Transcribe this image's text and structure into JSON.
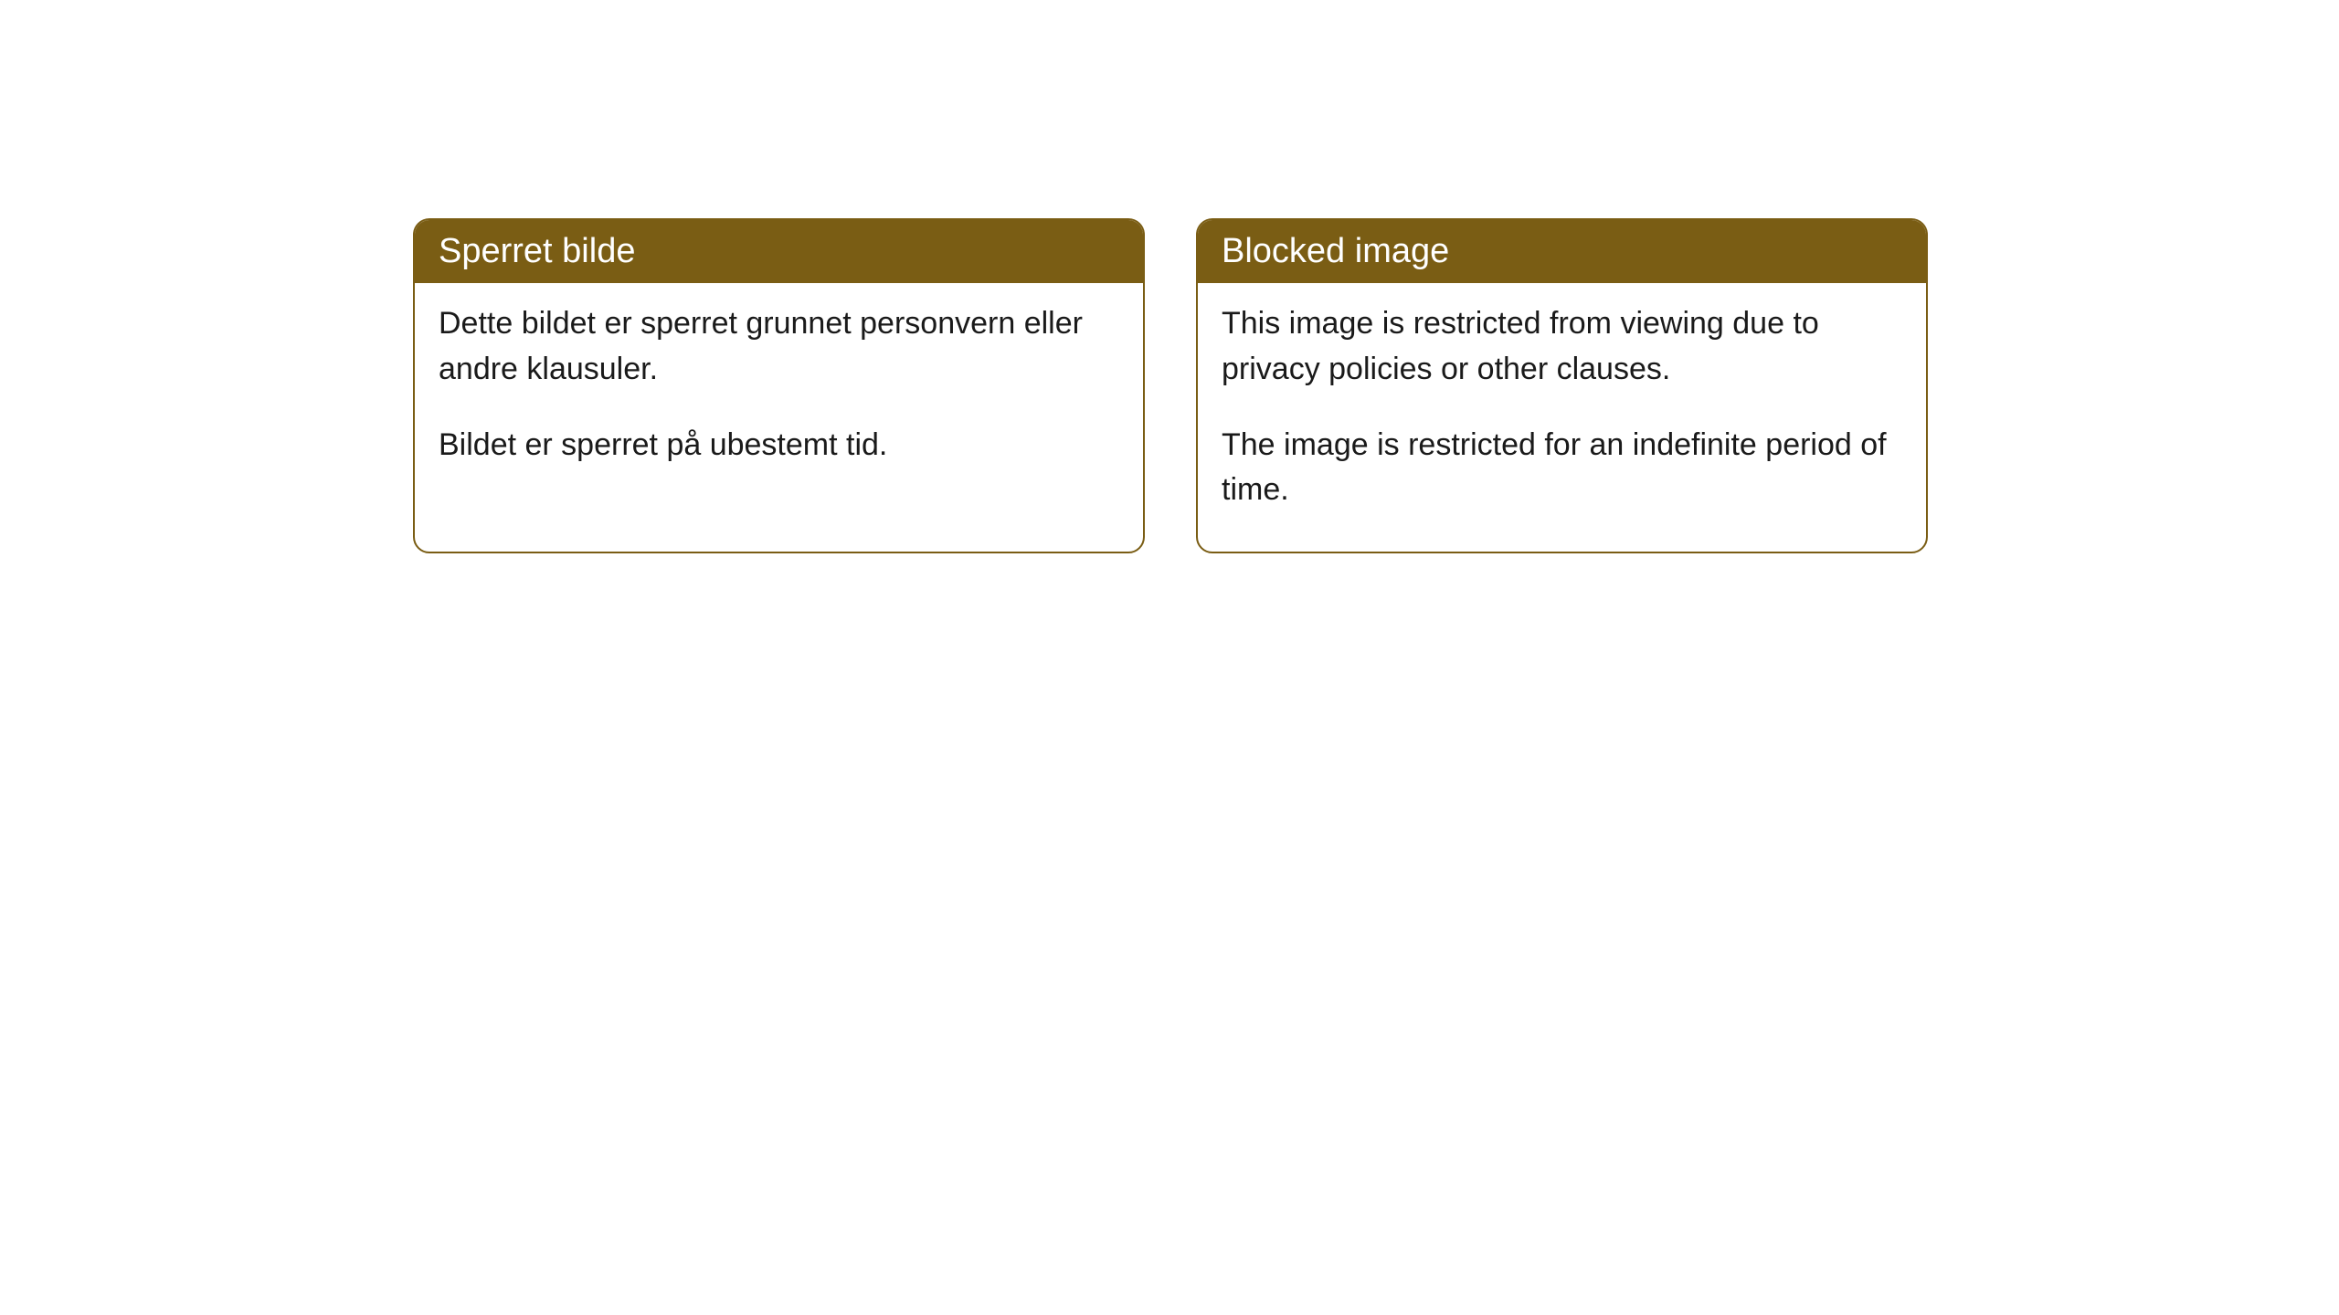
{
  "cards": [
    {
      "title": "Sperret bilde",
      "paragraph1": "Dette bildet er sperret grunnet personvern eller andre klausuler.",
      "paragraph2": "Bildet er sperret på ubestemt tid."
    },
    {
      "title": "Blocked image",
      "paragraph1": "This image is restricted from viewing due to privacy policies or other clauses.",
      "paragraph2": "The image is restricted for an indefinite period of time."
    }
  ],
  "style": {
    "header_bg_color": "#7a5d14",
    "header_text_color": "#ffffff",
    "border_color": "#7a5d14",
    "body_text_color": "#1a1a1a",
    "background_color": "#ffffff",
    "border_radius": 18,
    "header_fontsize": 38,
    "body_fontsize": 34
  }
}
